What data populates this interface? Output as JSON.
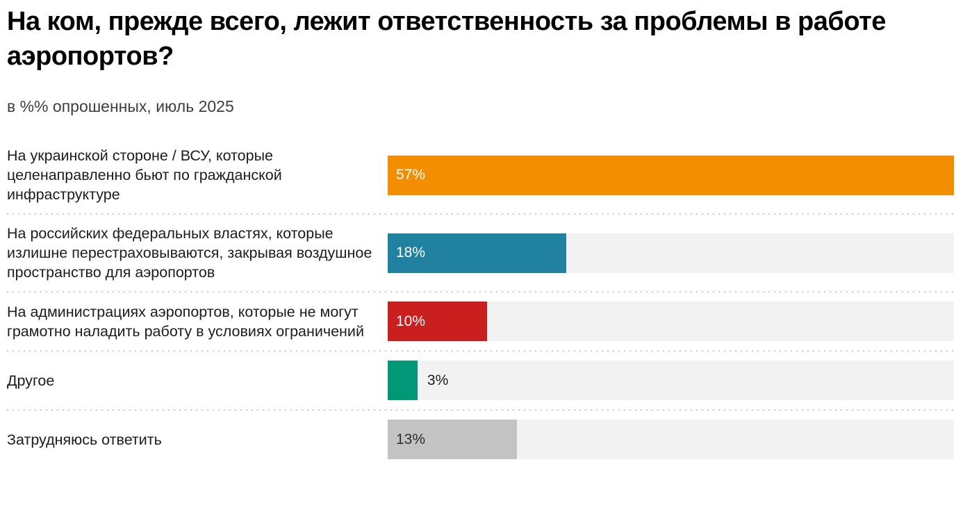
{
  "chart_data": {
    "type": "bar",
    "orientation": "horizontal",
    "title": "На ком, прежде всего, лежит ответственность за проблемы в работе аэропортов?",
    "subtitle": "в %% опрошенных, июль 2025",
    "unit": "%",
    "scale_max": 57,
    "grid": false,
    "legend": false,
    "categories": [
      "На украинской стороне / ВСУ, которые целенаправленно бьют по гражданской инфраструктуре",
      "На российских федеральных властях, которые излишне перестраховываются, закрывая воздушное пространство для аэропортов",
      "На администрациях аэропортов, которые не могут грамотно наладить работу в условиях ограничений",
      "Другое",
      "Затрудняюсь ответить"
    ],
    "values": [
      57,
      18,
      10,
      3,
      13
    ],
    "value_labels": [
      "57%",
      "18%",
      "10%",
      "3%",
      "13%"
    ],
    "bar_colors": [
      "#F28E00",
      "#2181A0",
      "#C91F1F",
      "#009877",
      "#C3C3C3"
    ],
    "value_text_colors": [
      "#FFFFFF",
      "#FFFFFF",
      "#FFFFFF",
      "#1C1C1C",
      "#2E2E2E"
    ],
    "label_inside": [
      true,
      true,
      true,
      false,
      true
    ],
    "track_color": "#F2F2F2",
    "colors": {
      "background": "#FFFFFF",
      "title_text": "#000000",
      "subtitle_text": "#3D3D3D",
      "category_text": "#1C1C1C",
      "divider": "#CCCCCC"
    }
  }
}
